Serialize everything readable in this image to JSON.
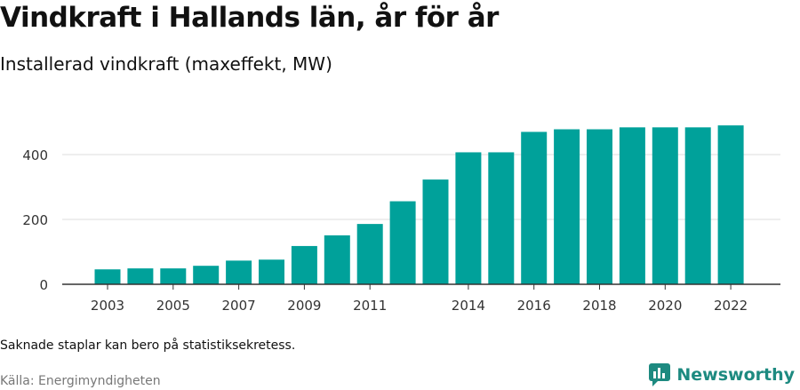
{
  "title": "Vindkraft i Hallands län, år för år",
  "subtitle": "Installerad vindkraft (maxeffekt, MW)",
  "note": "Saknade staplar kan bero på statistiksekretess.",
  "source": "Källa: Energimyndigheten",
  "brand": {
    "name": "Newsworthy",
    "icon": "newsworthy-logo-icon",
    "color": "#1d8a80"
  },
  "colors": {
    "bar": "#00a19a",
    "grid": "#dddddd",
    "axis": "#333333"
  },
  "chart_data": {
    "type": "bar",
    "categories": [
      "2003",
      "2004",
      "2005",
      "2006",
      "2007",
      "2008",
      "2009",
      "2010",
      "2011",
      "2012",
      "2013",
      "2014",
      "2015",
      "2016",
      "2017",
      "2018",
      "2019",
      "2020",
      "2021",
      "2022"
    ],
    "values": [
      46,
      49,
      49,
      57,
      73,
      76,
      118,
      151,
      186,
      256,
      323,
      407,
      407,
      470,
      478,
      478,
      484,
      484,
      484,
      490
    ],
    "x_tick_labels": [
      "2003",
      "2005",
      "2007",
      "2009",
      "2011",
      "2014",
      "2016",
      "2018",
      "2020",
      "2022"
    ],
    "y_ticks": [
      0,
      200,
      400
    ],
    "ylim": [
      0,
      520
    ],
    "xlabel": "",
    "ylabel": "",
    "grid": true
  }
}
